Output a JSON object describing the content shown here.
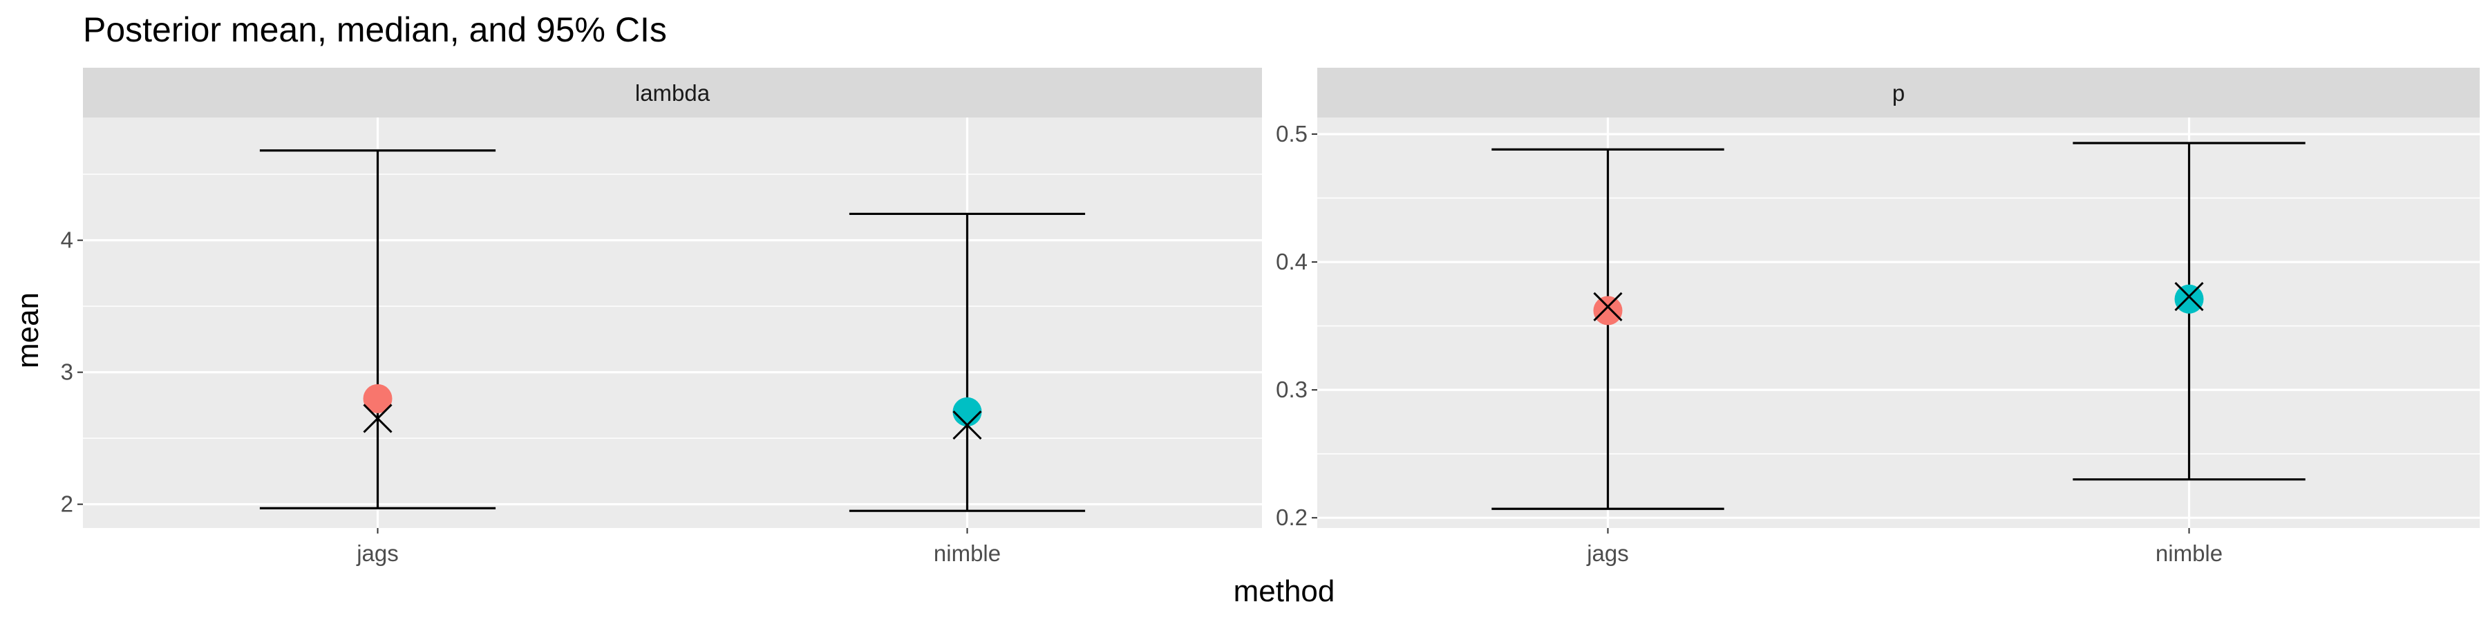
{
  "chart_data": {
    "type": "scatter",
    "title": "Posterior mean, median, and 95% CIs",
    "xlabel": "method",
    "ylabel": "mean",
    "categories": [
      "jags",
      "nimble"
    ],
    "legend": "none",
    "grid": true,
    "colors": {
      "jags": "#F8766D",
      "nimble": "#00BFC4"
    },
    "facets": [
      {
        "name": "lambda",
        "ylim": [
          1.82,
          4.93
        ],
        "y_ticks": [
          2,
          3,
          4
        ],
        "y_tick_labels": [
          "2",
          "3",
          "4"
        ],
        "points": [
          {
            "method": "jags",
            "mean": 2.8,
            "median": 2.65,
            "lower": 1.97,
            "upper": 4.68
          },
          {
            "method": "nimble",
            "mean": 2.7,
            "median": 2.6,
            "lower": 1.95,
            "upper": 4.2
          }
        ]
      },
      {
        "name": "p",
        "ylim": [
          0.192,
          0.513
        ],
        "y_ticks": [
          0.2,
          0.3,
          0.4,
          0.5
        ],
        "y_tick_labels": [
          "0.2",
          "0.3",
          "0.4",
          "0.5"
        ],
        "points": [
          {
            "method": "jags",
            "mean": 0.362,
            "median": 0.365,
            "lower": 0.207,
            "upper": 0.488
          },
          {
            "method": "nimble",
            "mean": 0.371,
            "median": 0.373,
            "lower": 0.23,
            "upper": 0.493
          }
        ]
      }
    ]
  }
}
